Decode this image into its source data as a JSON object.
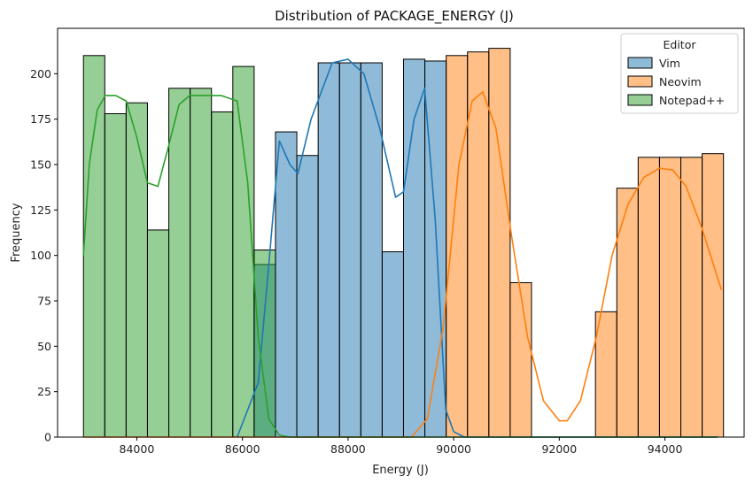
{
  "chart_data": {
    "type": "bar",
    "title": "Distribution of PACKAGE_ENERGY (J)",
    "xlabel": "Energy (J)",
    "ylabel": "Frequency",
    "xlim": [
      82500,
      95500
    ],
    "ylim": [
      0,
      225
    ],
    "xticks": [
      84000,
      86000,
      88000,
      90000,
      92000,
      94000
    ],
    "yticks": [
      0,
      25,
      50,
      75,
      100,
      125,
      150,
      175,
      200
    ],
    "bin_width": 404,
    "legend": {
      "title": "Editor",
      "placement": "upper right"
    },
    "series": [
      {
        "name": "Vim",
        "color": "#1f77b4",
        "fill_color": "#8db8d9",
        "bin_starts": [
          86222,
          86626,
          87030,
          87434,
          87838,
          88242,
          88646,
          89050,
          89454
        ],
        "values": [
          95,
          168,
          155,
          206,
          206,
          206,
          102,
          208,
          207
        ],
        "kde_x": [
          85900,
          86300,
          86500,
          86700,
          86900,
          87050,
          87300,
          87700,
          88000,
          88300,
          88600,
          88900,
          89050,
          89250,
          89450,
          89650,
          89850,
          90000,
          90200,
          95000
        ],
        "kde_y": [
          0,
          30,
          95,
          163,
          150,
          145,
          175,
          206,
          208,
          200,
          170,
          132,
          135,
          175,
          192,
          120,
          15,
          3,
          0,
          0
        ]
      },
      {
        "name": "Neovim",
        "color": "#ff7f0e",
        "fill_color": "#ffb87d",
        "bin_starts": [
          89858,
          90262,
          90666,
          91070,
          92685,
          93089,
          93493,
          93897,
          94301,
          94705
        ],
        "values": [
          210,
          212,
          214,
          85,
          69,
          137,
          154,
          154,
          154,
          156
        ],
        "kde_x": [
          83000,
          89200,
          89500,
          89800,
          90100,
          90350,
          90550,
          90800,
          91100,
          91400,
          91700,
          92000,
          92150,
          92400,
          92700,
          93000,
          93300,
          93600,
          93900,
          94150,
          94400,
          94700,
          95070
        ],
        "kde_y": [
          0,
          0,
          10,
          60,
          150,
          185,
          190,
          170,
          110,
          55,
          20,
          9,
          9,
          20,
          55,
          100,
          128,
          143,
          148,
          147,
          138,
          115,
          81
        ]
      },
      {
        "name": "Notepad++",
        "color": "#2ca02c",
        "fill_color": "#98cf94",
        "bin_starts": [
          82990,
          83394,
          83798,
          84202,
          84606,
          85010,
          85414,
          85818,
          86222
        ],
        "values": [
          210,
          178,
          184,
          114,
          192,
          192,
          179,
          204,
          103
        ],
        "kde_x": [
          82990,
          83100,
          83250,
          83400,
          83600,
          83800,
          84000,
          84200,
          84400,
          84600,
          84800,
          85000,
          85300,
          85600,
          85900,
          86100,
          86300,
          86500,
          86700,
          86900,
          95000
        ],
        "kde_y": [
          100,
          150,
          180,
          188,
          188,
          185,
          165,
          140,
          138,
          160,
          183,
          188,
          188,
          188,
          185,
          140,
          55,
          10,
          1,
          0,
          0
        ]
      }
    ]
  }
}
